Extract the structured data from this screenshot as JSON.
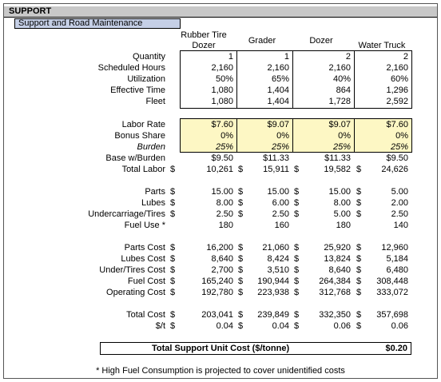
{
  "header": {
    "title": "SUPPORT",
    "subtitle": "Support and Road Maintenance"
  },
  "columns": [
    "Rubber Tire Dozer",
    "Grader",
    "Dozer",
    "Water Truck"
  ],
  "sections": [
    {
      "rows": [
        {
          "label": "Quantity",
          "values": [
            "1",
            "1",
            "2",
            "2"
          ]
        },
        {
          "label": "Scheduled Hours",
          "values": [
            "2,160",
            "2,160",
            "2,160",
            "2,160"
          ]
        },
        {
          "label": "Utilization",
          "values": [
            "50%",
            "65%",
            "40%",
            "60%"
          ]
        },
        {
          "label": "Effective Time",
          "values": [
            "1,080",
            "1,404",
            "864",
            "1,296"
          ]
        },
        {
          "label": "Fleet",
          "values": [
            "1,080",
            "1,404",
            "1,728",
            "2,592"
          ]
        }
      ]
    },
    {
      "rows": [
        {
          "label": "Labor Rate",
          "values": [
            "$7.60",
            "$9.07",
            "$9.07",
            "$7.60"
          ]
        },
        {
          "label": "Bonus Share",
          "values": [
            "0%",
            "0%",
            "0%",
            "0%"
          ]
        },
        {
          "label": "Burden",
          "values": [
            "25%",
            "25%",
            "25%",
            "25%"
          ]
        },
        {
          "label": "Base w/Burden",
          "values": [
            "$9.50",
            "$11.33",
            "$11.33",
            "$9.50"
          ]
        },
        {
          "label": "Total Labor",
          "currency": [
            "$",
            "$",
            "$",
            "$"
          ],
          "values": [
            "10,261",
            "15,911",
            "19,582",
            "24,626"
          ]
        }
      ]
    },
    {
      "rows": [
        {
          "label": "Parts",
          "currency": [
            "$",
            "$",
            "$",
            "$"
          ],
          "values": [
            "15.00",
            "15.00",
            "15.00",
            "5.00"
          ]
        },
        {
          "label": "Lubes",
          "currency": [
            "$",
            "$",
            "$",
            "$"
          ],
          "values": [
            "8.00",
            "6.00",
            "8.00",
            "2.00"
          ]
        },
        {
          "label": "Undercarriage/Tires",
          "currency": [
            "$",
            "$",
            "$",
            "$"
          ],
          "values": [
            "2.50",
            "2.50",
            "5.00",
            "2.50"
          ]
        },
        {
          "label": "Fuel Use *",
          "values": [
            "180",
            "160",
            "180",
            "140"
          ]
        }
      ]
    },
    {
      "rows": [
        {
          "label": "Parts Cost",
          "currency": [
            "$",
            "$",
            "$",
            "$"
          ],
          "values": [
            "16,200",
            "21,060",
            "25,920",
            "12,960"
          ]
        },
        {
          "label": "Lubes Cost",
          "currency": [
            "$",
            "$",
            "$",
            "$"
          ],
          "values": [
            "8,640",
            "8,424",
            "13,824",
            "5,184"
          ]
        },
        {
          "label": "Under/Tires Cost",
          "currency": [
            "$",
            "$",
            "$",
            "$"
          ],
          "values": [
            "2,700",
            "3,510",
            "8,640",
            "6,480"
          ]
        },
        {
          "label": "Fuel Cost",
          "currency": [
            "$",
            "$",
            "$",
            "$"
          ],
          "values": [
            "165,240",
            "190,944",
            "264,384",
            "308,448"
          ]
        },
        {
          "label": "Operating Cost",
          "currency": [
            "$",
            "$",
            "$",
            "$"
          ],
          "values": [
            "192,780",
            "223,938",
            "312,768",
            "333,072"
          ]
        }
      ]
    },
    {
      "rows": [
        {
          "label": "Total Cost",
          "currency": [
            "$",
            "$",
            "$",
            "$"
          ],
          "values": [
            "203,041",
            "239,849",
            "332,350",
            "357,698"
          ]
        },
        {
          "label": "$/t",
          "currency": [
            "$",
            "$",
            "$",
            "$"
          ],
          "values": [
            "0.04",
            "0.04",
            "0.06",
            "0.06"
          ]
        }
      ]
    }
  ],
  "total": {
    "label": "Total Support Unit Cost ($/tonne)",
    "value": "$0.20"
  },
  "footnote": "* High Fuel Consumption is projected to cover unidentified costs"
}
